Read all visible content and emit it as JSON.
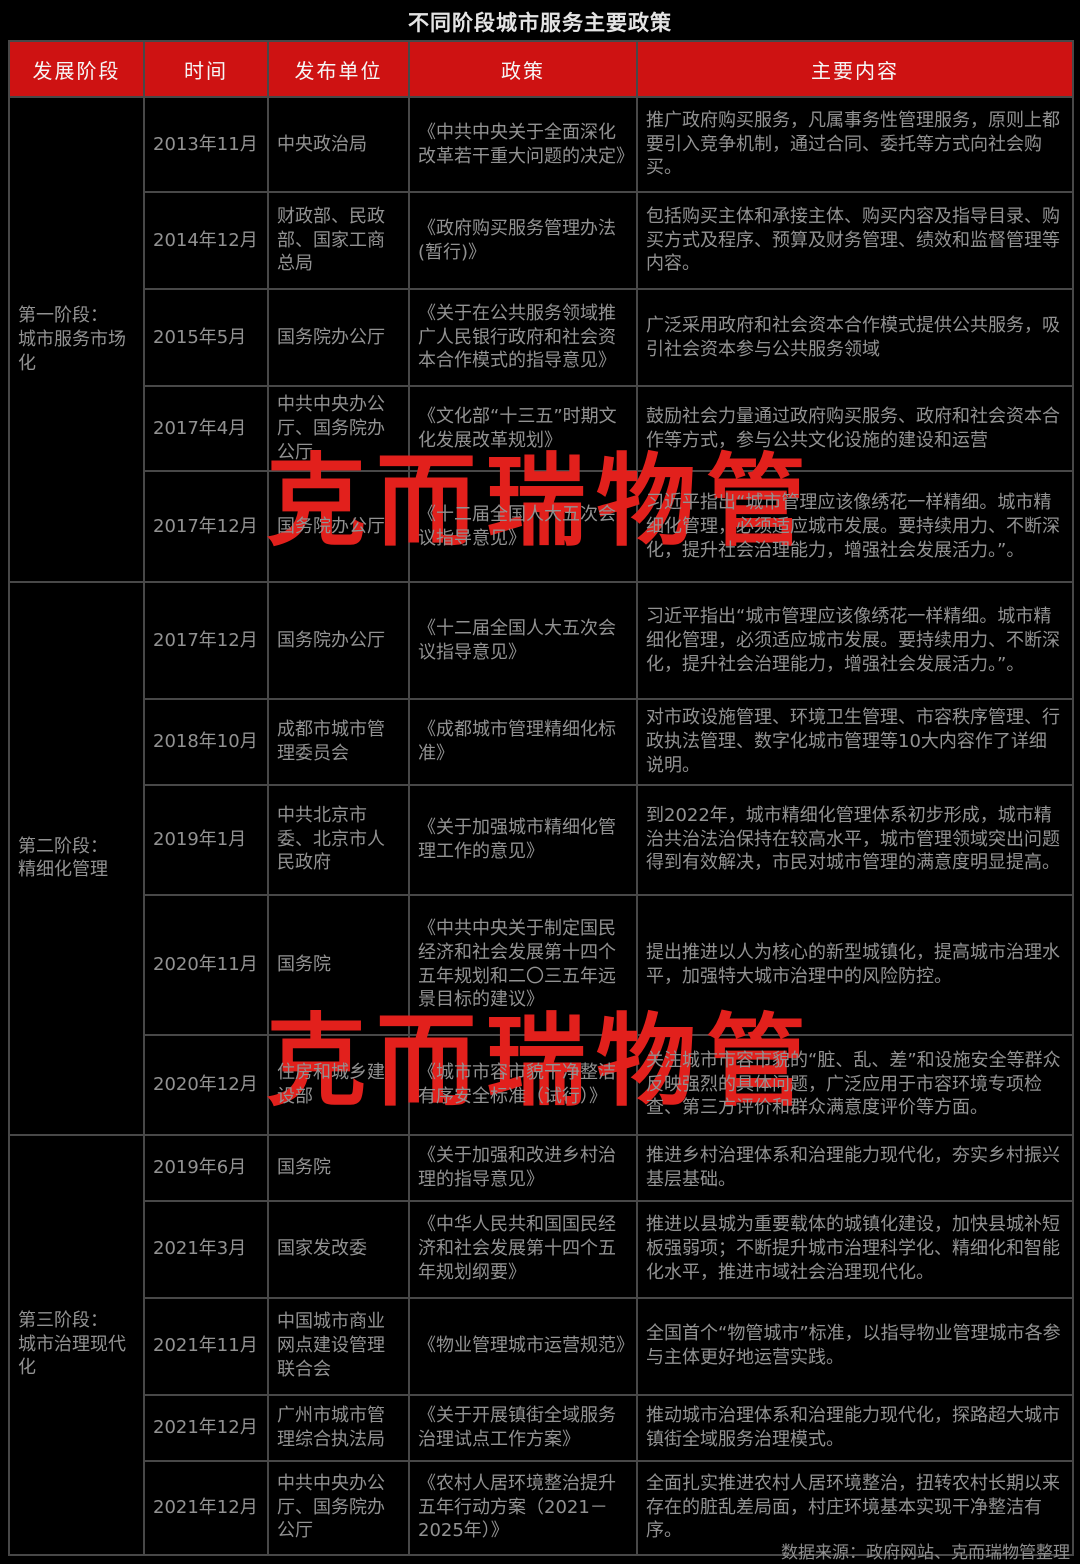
{
  "watermark": "克而瑞物管",
  "colors": {
    "background": "#000000",
    "header_bg": "#CE1212",
    "watermark_red": "#E2201C",
    "border_gray": "#484848",
    "body_text": "#929292"
  },
  "chart_data": {
    "type": "table",
    "title": "不同阶段城市服务主要政策",
    "source": "数据来源：政府网站、克而瑞物管整理",
    "columns": [
      "发展阶段",
      "时间",
      "发布单位",
      "政策",
      "主要内容"
    ],
    "stages": [
      {
        "label": "第一阶段：\n城市服务市场化",
        "rows": [
          {
            "time": "2013年11月",
            "unit": "中央政治局",
            "policy": "《中共中央关于全面深化改革若干重大问题的决定》",
            "content": "推广政府购买服务，凡属事务性管理服务，原则上都要引入竞争机制，通过合同、委托等方式向社会购买。"
          },
          {
            "time": "2014年12月",
            "unit": "财政部、民政部、国家工商总局",
            "policy": "《政府购买服务管理办法(暂行)》",
            "content": "包括购买主体和承接主体、购买内容及指导目录、购买方式及程序、预算及财务管理、绩效和监督管理等内容。"
          },
          {
            "time": "2015年5月",
            "unit": "国务院办公厅",
            "policy": "《关于在公共服务领域推广人民银行政府和社会资本合作模式的指导意见》",
            "content": "广泛采用政府和社会资本合作模式提供公共服务，吸引社会资本参与公共服务领域"
          },
          {
            "time": "2017年4月",
            "unit": "中共中央办公厅、国务院办公厅",
            "policy": "《文化部“十三五”时期文化发展改革规划》",
            "content": "鼓励社会力量通过政府购买服务、政府和社会资本合作等方式，参与公共文化设施的建设和运营"
          },
          {
            "time": "2017年12月",
            "unit": "国务院办公厅",
            "policy": "《十二届全国人大五次会议指导意见》",
            "content": "习近平指出“城市管理应该像绣花一样精细。城市精细化管理，必须适应城市发展。要持续用力、不断深化，提升社会治理能力，增强社会发展活力。”。"
          }
        ]
      },
      {
        "label": "第二阶段：\n精细化管理",
        "rows": [
          {
            "time": "2017年12月",
            "unit": "国务院办公厅",
            "policy": "《十二届全国人大五次会议指导意见》",
            "content": "习近平指出“城市管理应该像绣花一样精细。城市精细化管理，必须适应城市发展。要持续用力、不断深化，提升社会治理能力，增强社会发展活力。”。"
          },
          {
            "time": "2018年10月",
            "unit": "成都市城市管理委员会",
            "policy": "《成都城市管理精细化标准》",
            "content": "对市政设施管理、环境卫生管理、市容秩序管理、行政执法管理、数字化城市管理等10大内容作了详细说明。"
          },
          {
            "time": "2019年1月",
            "unit": "中共北京市委、北京市人民政府",
            "policy": "《关于加强城市精细化管理工作的意见》",
            "content": "到2022年，城市精细化管理体系初步形成，城市精治共治法治保持在较高水平，城市管理领域突出问题得到有效解决，市民对城市管理的满意度明显提高。"
          },
          {
            "time": "2020年11月",
            "unit": "国务院",
            "policy": "《中共中央关于制定国民经济和社会发展第十四个五年规划和二〇三五年远景目标的建议》",
            "content": "提出推进以人为核心的新型城镇化，提高城市治理水平，加强特大城市治理中的风险防控。"
          },
          {
            "time": "2020年12月",
            "unit": "住房和城乡建设部",
            "policy": "《城市市容市貌干净整洁有序安全标准（试行）》",
            "content": "关注城市市容市貌的“脏、乱、差”和设施安全等群众反映强烈的具体问题，广泛应用于市容环境专项检查、第三方评价和群众满意度评价等方面。"
          }
        ]
      },
      {
        "label": "第三阶段：\n城市治理现代化",
        "rows": [
          {
            "time": "2019年6月",
            "unit": "国务院",
            "policy": "《关于加强和改进乡村治理的指导意见》",
            "content": "推进乡村治理体系和治理能力现代化，夯实乡村振兴基层基础。"
          },
          {
            "time": "2021年3月",
            "unit": "国家发改委",
            "policy": "《中华人民共和国国民经济和社会发展第十四个五年规划纲要》",
            "content": "推进以县城为重要载体的城镇化建设，加快县城补短板强弱项；不断提升城市治理科学化、精细化和智能化水平，推进市域社会治理现代化。"
          },
          {
            "time": "2021年11月",
            "unit": "中国城市商业网点建设管理联合会",
            "policy": "《物业管理城市运营规范》",
            "content": "全国首个“物管城市”标准，以指导物业管理城市各参与主体更好地运营实践。"
          },
          {
            "time": "2021年12月",
            "unit": "广州市城市管理综合执法局",
            "policy": "《关于开展镇街全域服务治理试点工作方案》",
            "content": "推动城市治理体系和治理能力现代化，探路超大城市镇街全域服务治理模式。"
          },
          {
            "time": "2021年12月",
            "unit": "中共中央办公厅、国务院办公厅",
            "policy": "《农村人居环境整治提升五年行动方案（2021－2025年）》",
            "content": "全面扎实推进农村人居环境整治，扭转农村长期以来存在的脏乱差局面，村庄环境基本实现干净整洁有序。"
          }
        ]
      }
    ]
  }
}
